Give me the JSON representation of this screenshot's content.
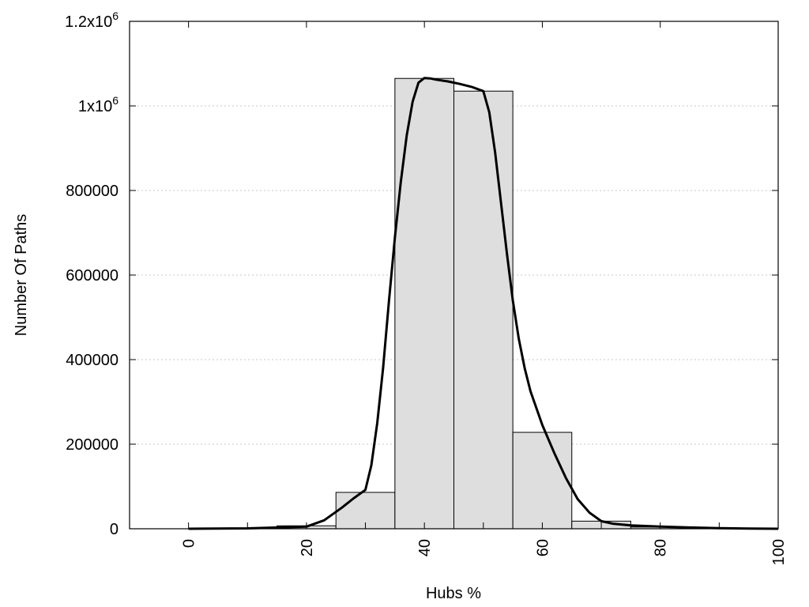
{
  "chart_data": {
    "type": "bar",
    "xlabel": "Hubs %",
    "ylabel": "Number Of Paths",
    "xlim": [
      -10,
      100
    ],
    "ylim": [
      0,
      1200000
    ],
    "x_ticks": [
      {
        "value": 0,
        "label": "0"
      },
      {
        "value": 20,
        "label": "20"
      },
      {
        "value": 40,
        "label": "40"
      },
      {
        "value": 60,
        "label": "60"
      },
      {
        "value": 80,
        "label": "80"
      },
      {
        "value": 100,
        "label": "100"
      }
    ],
    "y_ticks": [
      {
        "value": 0,
        "label": "0",
        "sup": ""
      },
      {
        "value": 200000,
        "label": "200000",
        "sup": ""
      },
      {
        "value": 400000,
        "label": "400000",
        "sup": ""
      },
      {
        "value": 600000,
        "label": "600000",
        "sup": ""
      },
      {
        "value": 800000,
        "label": "800000",
        "sup": ""
      },
      {
        "value": 1000000,
        "label": "1x10",
        "sup": "6"
      },
      {
        "value": 1200000,
        "label": "1.2x10",
        "sup": "6"
      }
    ],
    "grid": "horizontal",
    "bar_width": 10,
    "bars": [
      {
        "x": 0,
        "value": 0
      },
      {
        "x": 10,
        "value": 1500
      },
      {
        "x": 20,
        "value": 7000
      },
      {
        "x": 30,
        "value": 86000
      },
      {
        "x": 40,
        "value": 1065000
      },
      {
        "x": 50,
        "value": 1035000
      },
      {
        "x": 60,
        "value": 228000
      },
      {
        "x": 70,
        "value": 18000
      },
      {
        "x": 80,
        "value": 4000
      },
      {
        "x": 90,
        "value": 1000
      },
      {
        "x": 100,
        "value": 0
      }
    ],
    "curve": {
      "x": [
        0,
        10,
        20,
        23,
        26,
        28,
        30,
        31,
        32,
        33,
        34,
        35,
        36,
        37,
        38,
        39,
        40,
        41,
        42,
        44,
        46,
        48,
        50,
        51,
        52,
        53,
        54,
        55,
        56,
        57,
        58,
        60,
        62,
        64,
        66,
        68,
        70,
        72,
        75,
        80,
        85,
        90,
        95,
        100
      ],
      "y": [
        0,
        1000,
        5000,
        20000,
        50000,
        72000,
        92000,
        150000,
        250000,
        380000,
        540000,
        690000,
        820000,
        930000,
        1010000,
        1055000,
        1066000,
        1065000,
        1062000,
        1058000,
        1052000,
        1045000,
        1035000,
        985000,
        890000,
        770000,
        650000,
        540000,
        450000,
        380000,
        325000,
        245000,
        180000,
        120000,
        70000,
        38000,
        18000,
        12000,
        8000,
        5000,
        3000,
        1500,
        500,
        0
      ]
    }
  }
}
